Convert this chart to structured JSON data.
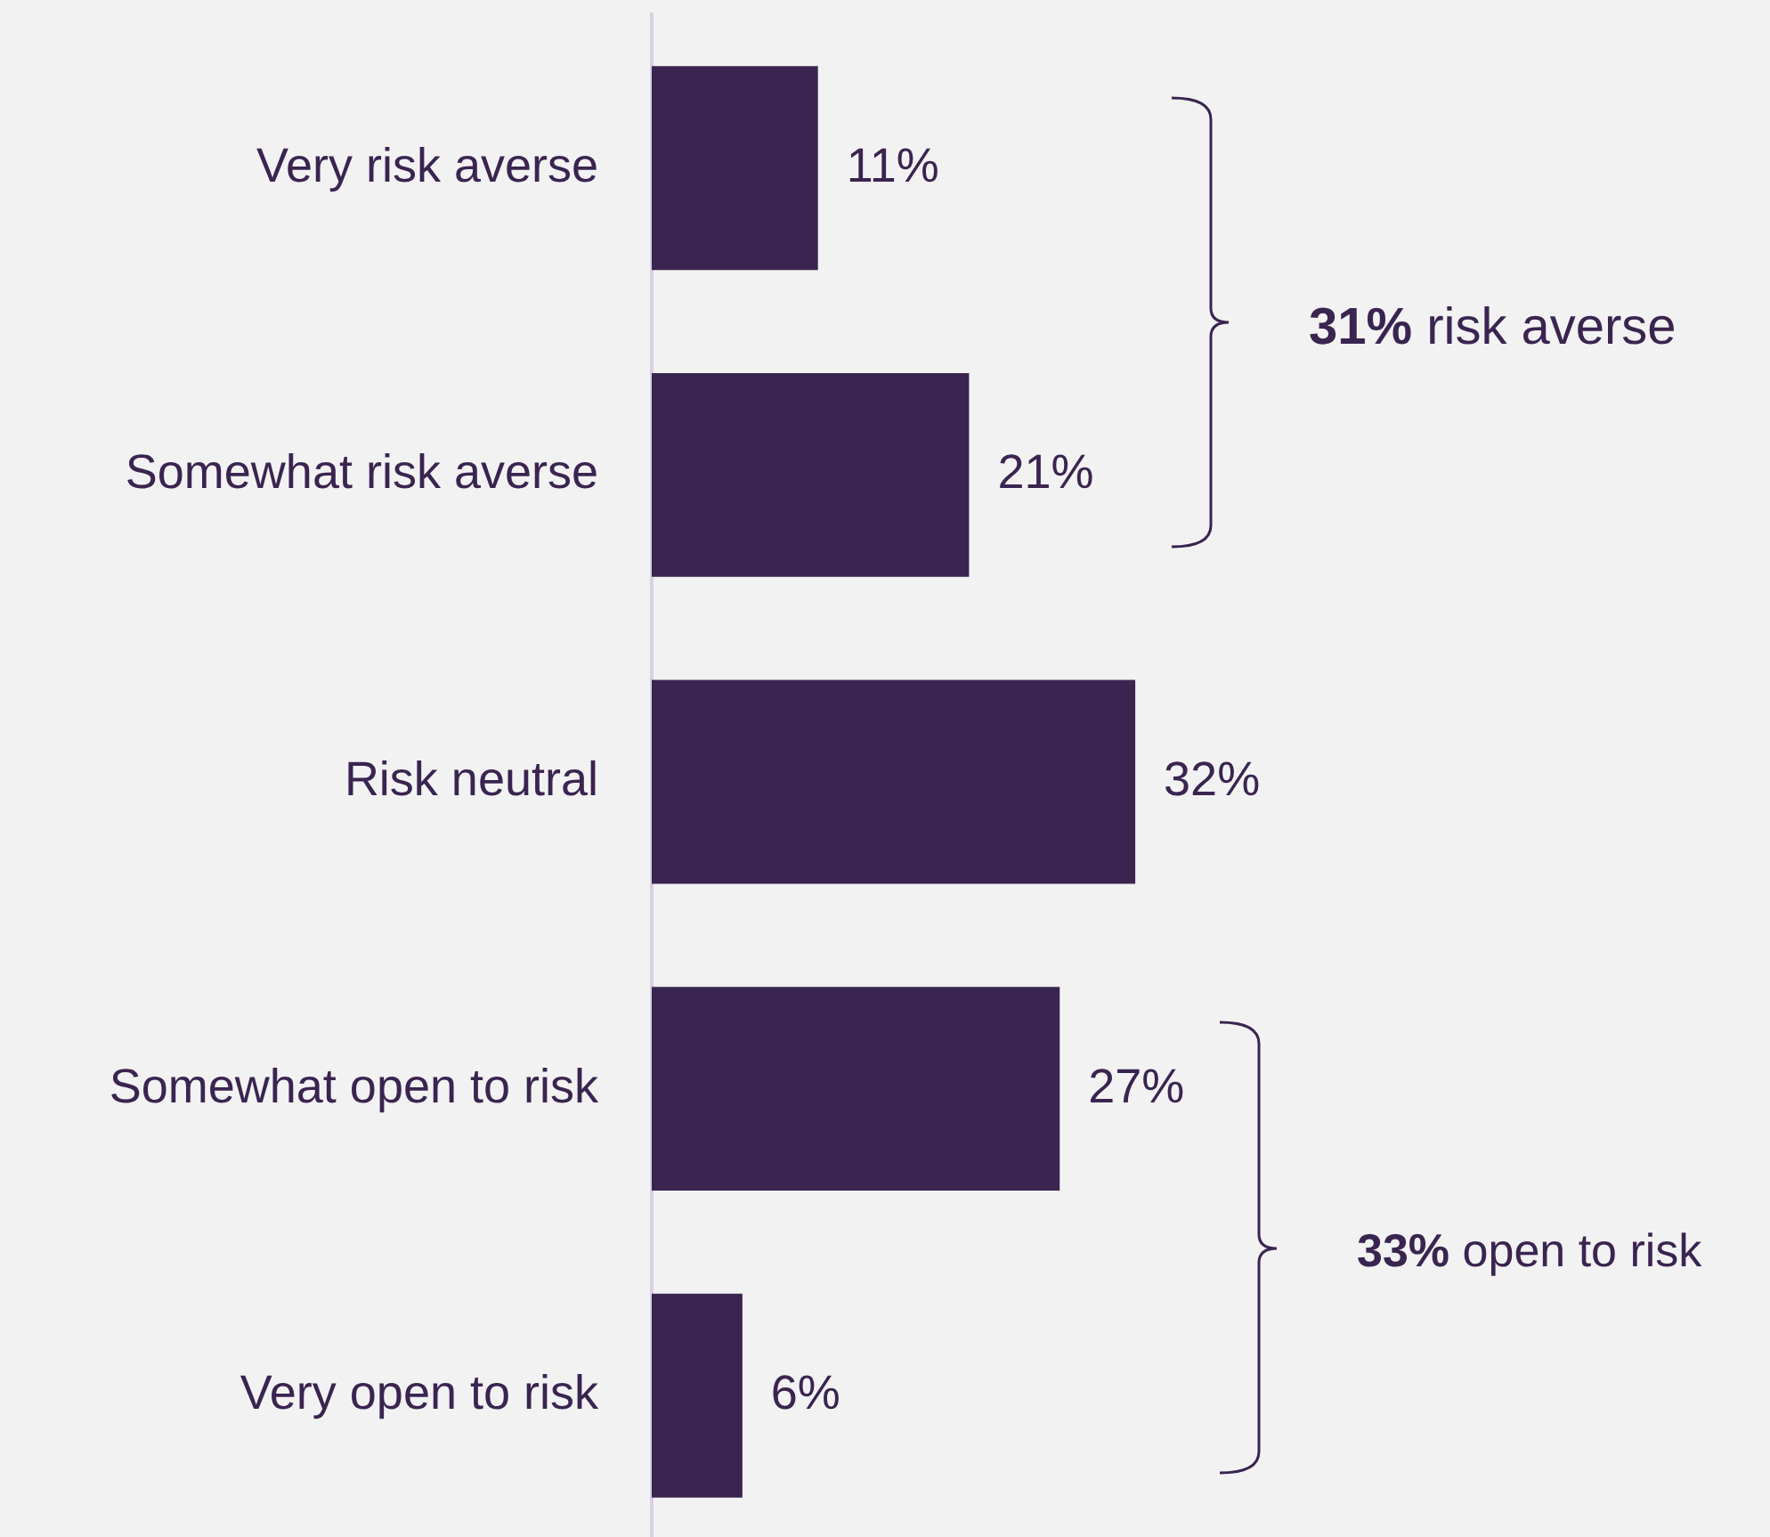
{
  "chart_data": {
    "type": "bar",
    "orientation": "horizontal",
    "categories": [
      "Very risk averse",
      "Somewhat risk averse",
      "Risk neutral",
      "Somewhat open to risk",
      "Very open to risk"
    ],
    "values": [
      11,
      21,
      32,
      27,
      6
    ],
    "value_labels": [
      "11%",
      "21%",
      "32%",
      "27%",
      "6%"
    ],
    "color": "#3a2450",
    "tick_labels": "y",
    "annotations": [
      "31% risk averse",
      "33% open to risk"
    ]
  }
}
